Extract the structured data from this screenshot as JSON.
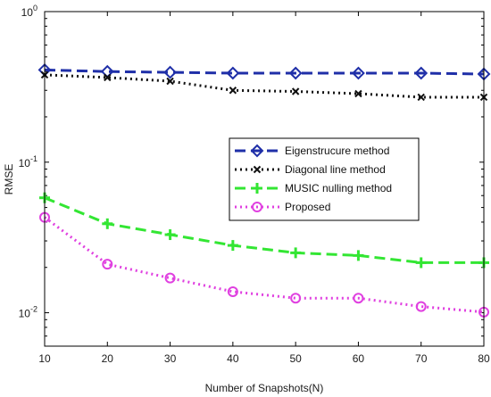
{
  "chart_data": {
    "type": "line",
    "xlabel": "Number of Snapshots(N)",
    "ylabel": "RMSE",
    "x": [
      10,
      20,
      30,
      40,
      50,
      60,
      70,
      80
    ],
    "xlim": [
      10,
      80
    ],
    "xticks": [
      "10",
      "20",
      "30",
      "40",
      "50",
      "60",
      "70",
      "80"
    ],
    "ylim": [
      0.006,
      1
    ],
    "yscale": "log",
    "yticks": [
      {
        "value": 0.01,
        "base": "10",
        "exp": "-2"
      },
      {
        "value": 0.1,
        "base": "10",
        "exp": "-1"
      },
      {
        "value": 1,
        "base": "10",
        "exp": "0"
      }
    ],
    "legend_position": "center-right",
    "series": [
      {
        "name": "Eigenstrucure method",
        "color": "#1f2fa8",
        "linestyle": "dashed",
        "marker": "diamond",
        "values": [
          0.41,
          0.4,
          0.395,
          0.39,
          0.39,
          0.39,
          0.39,
          0.385
        ]
      },
      {
        "name": "Diagonal line method",
        "color": "#111111",
        "linestyle": "dotted",
        "marker": "x",
        "values": [
          0.38,
          0.365,
          0.345,
          0.3,
          0.295,
          0.285,
          0.27,
          0.27
        ]
      },
      {
        "name": "MUSIC nulling method",
        "color": "#33e633",
        "linestyle": "dashed",
        "marker": "plus",
        "values": [
          0.058,
          0.039,
          0.033,
          0.028,
          0.025,
          0.024,
          0.0215,
          0.0215
        ]
      },
      {
        "name": "Proposed",
        "color": "#e040e0",
        "linestyle": "dotted",
        "marker": "circle",
        "values": [
          0.043,
          0.021,
          0.017,
          0.0138,
          0.0125,
          0.0125,
          0.011,
          0.0101
        ]
      }
    ]
  }
}
